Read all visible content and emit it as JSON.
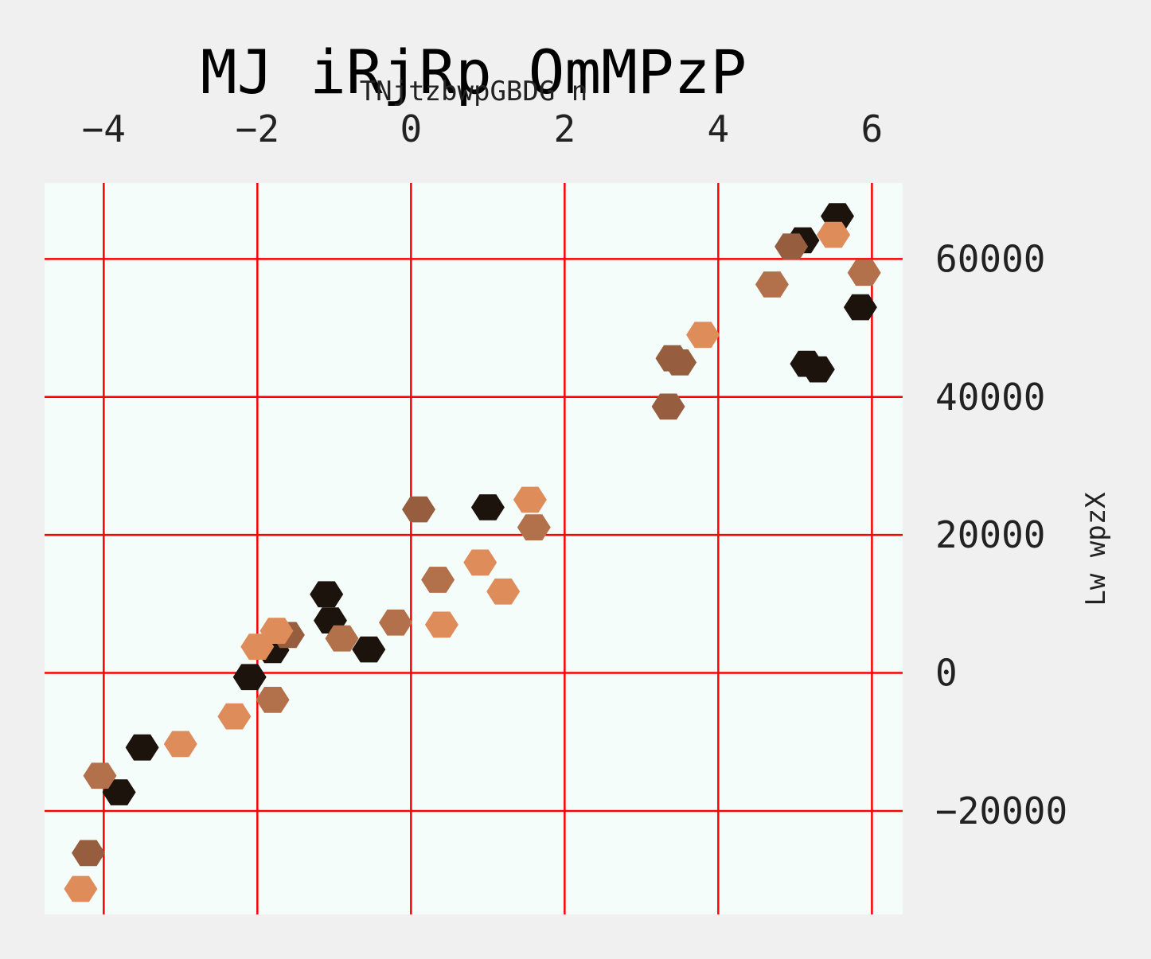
{
  "chart_data": {
    "type": "scatter",
    "title": "MJ iRjRp OmMPzP",
    "xlabel": "TNjtzbwpGBDG n",
    "ylabel": "Lw wpzX",
    "xlim": [
      -4.77,
      6.4
    ],
    "ylim": [
      -35000,
      71000
    ],
    "x_ticks": [
      -4,
      -2,
      0,
      2,
      4,
      6
    ],
    "y_ticks": [
      -20000,
      0,
      20000,
      40000,
      60000
    ],
    "x_tick_labels": [
      "−4",
      "−2",
      "0",
      "2",
      "4",
      "6"
    ],
    "y_tick_labels": [
      "−20000",
      "0",
      "20000",
      "40000",
      "60000"
    ],
    "x_axis_position": "top",
    "y_axis_position": "right",
    "grid": true,
    "marker": "hexagon",
    "colors": {
      "plot_background": "#f5fdfa",
      "figure_background": "#f0f0f0",
      "grid": "#ff0000"
    },
    "series": [
      {
        "color": "#1c130d",
        "points": [
          [
            5.55,
            66200
          ],
          [
            5.1,
            62700
          ],
          [
            5.85,
            53000
          ],
          [
            5.15,
            44800
          ],
          [
            5.3,
            44000
          ],
          [
            1.0,
            24000
          ],
          [
            -1.1,
            11400
          ],
          [
            -1.05,
            7600
          ],
          [
            -1.8,
            3300
          ],
          [
            -0.55,
            3400
          ],
          [
            -2.1,
            -600
          ],
          [
            -3.5,
            -10800
          ],
          [
            -3.8,
            -17300
          ]
        ]
      },
      {
        "color": "#965e3e",
        "points": [
          [
            4.95,
            61800
          ],
          [
            3.4,
            45600
          ],
          [
            3.5,
            45000
          ],
          [
            3.35,
            38600
          ],
          [
            0.1,
            23700
          ],
          [
            -1.6,
            5500
          ],
          [
            -4.2,
            -26100
          ]
        ]
      },
      {
        "color": "#b3714b",
        "points": [
          [
            5.9,
            58000
          ],
          [
            4.7,
            56300
          ],
          [
            1.6,
            21100
          ],
          [
            0.35,
            13500
          ],
          [
            -0.2,
            7300
          ],
          [
            -0.9,
            5000
          ],
          [
            -1.8,
            -3900
          ],
          [
            -4.05,
            -14900
          ]
        ]
      },
      {
        "color": "#df8c5b",
        "points": [
          [
            5.5,
            63500
          ],
          [
            3.8,
            49000
          ],
          [
            1.55,
            25100
          ],
          [
            0.9,
            16000
          ],
          [
            1.2,
            11800
          ],
          [
            0.4,
            7000
          ],
          [
            -1.75,
            6100
          ],
          [
            -2.0,
            3800
          ],
          [
            -2.3,
            -6300
          ],
          [
            -3.0,
            -10300
          ],
          [
            -4.3,
            -31300
          ]
        ]
      }
    ]
  }
}
